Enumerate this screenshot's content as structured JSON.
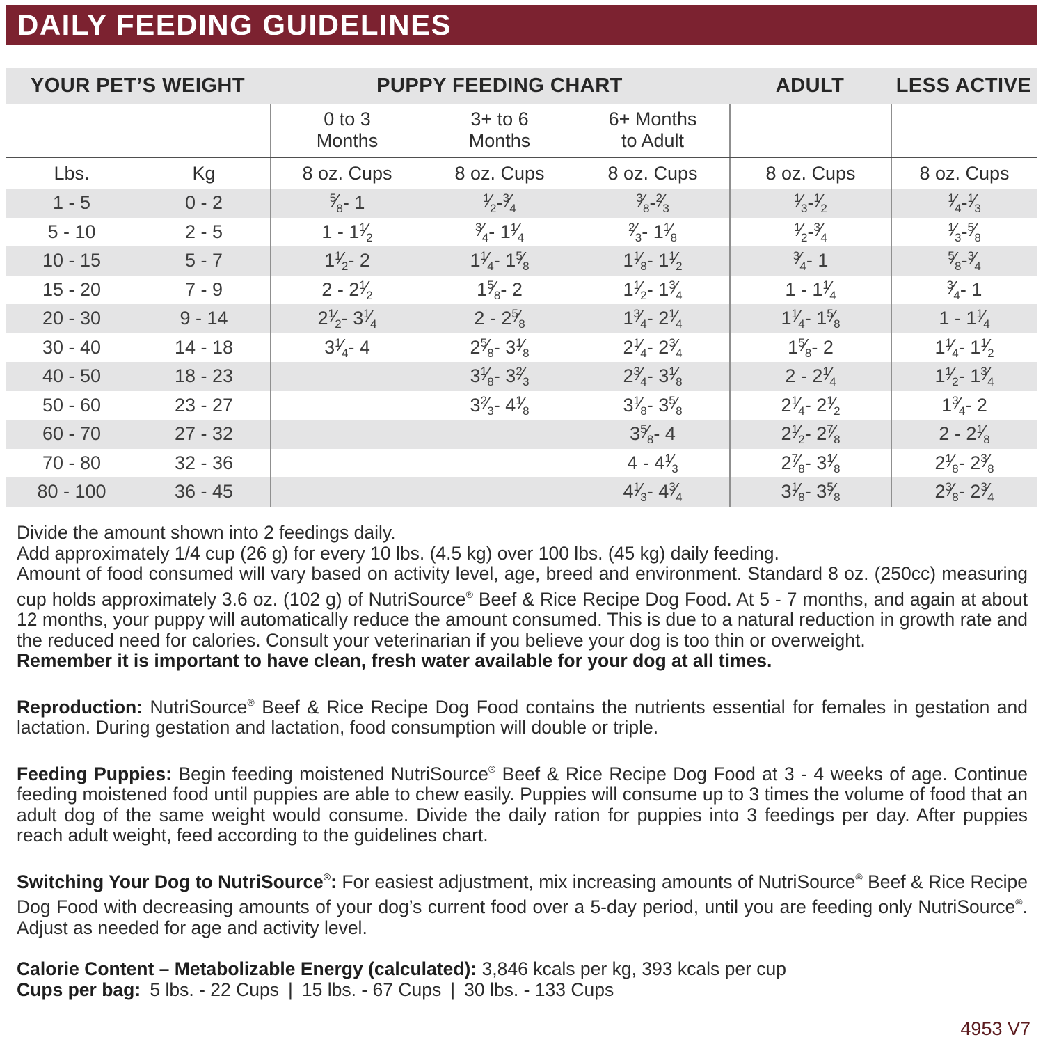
{
  "title": "DAILY FEEDING GUIDELINES",
  "colors": {
    "header_band": "#7c2230",
    "row_stripe": "#e4e4e5",
    "footer_text": "#5c1b1e"
  },
  "table": {
    "group_headers": [
      {
        "label": "YOUR PET’S WEIGHT"
      },
      {
        "label": "PUPPY FEEDING CHART"
      },
      {
        "label": "ADULT"
      },
      {
        "label": "LESS ACTIVE"
      }
    ],
    "month_headers": [
      [
        "0 to 3",
        "Months"
      ],
      [
        "3+ to 6",
        "Months"
      ],
      [
        "6+ Months",
        "to Adult"
      ]
    ],
    "unit_headers": [
      "Lbs.",
      "Kg",
      "8 oz. Cups",
      "8 oz. Cups",
      "8 oz. Cups",
      "8 oz. Cups",
      "8 oz. Cups"
    ],
    "rows": [
      [
        "1 - 5",
        "0 - 2",
        "5/8 - 1",
        "1/2 - 3/4",
        "3/8 - 2/3",
        "1/3 - 1/2",
        "1/4 - 1/3"
      ],
      [
        "5 - 10",
        "2 - 5",
        "1 - 1 1/2",
        "3/4 - 1 1/4",
        "2/3 - 1 1/8",
        "1/2 - 3/4",
        "1/3 - 5/8"
      ],
      [
        "10 - 15",
        "5 - 7",
        "1 1/2 - 2",
        "1 1/4 - 1 5/8",
        "1 1/8 - 1 1/2",
        "3/4 - 1",
        "5/8 - 3/4"
      ],
      [
        "15 - 20",
        "7 - 9",
        "2 - 2 1/2",
        "1 5/8 - 2",
        "1 1/2 - 1 3/4",
        "1 - 1 1/4",
        "3/4 - 1"
      ],
      [
        "20 - 30",
        "9 - 14",
        "2 1/2 - 3 1/4",
        "2 - 2 5/8",
        "1 3/4 - 2 1/4",
        "1 1/4 - 1 5/8",
        "1 - 1 1/4"
      ],
      [
        "30 - 40",
        "14 - 18",
        "3 1/4 - 4",
        "2 5/8 - 3 1/8",
        "2 1/4 - 2 3/4",
        "1 5/8 - 2",
        "1 1/4 - 1 1/2"
      ],
      [
        "40 - 50",
        "18 - 23",
        "",
        "3 1/8 - 3 2/3",
        "2 3/4 - 3 1/8",
        "2 - 2 1/4",
        "1 1/2 - 1 3/4"
      ],
      [
        "50 - 60",
        "23 - 27",
        "",
        "3 2/3 - 4 1/8",
        "3 1/8 - 3 5/8",
        "2 1/4 - 2 1/2",
        "1 3/4 - 2"
      ],
      [
        "60 - 70",
        "27 - 32",
        "",
        "",
        "3 5/8 - 4",
        "2 1/2 - 2 7/8",
        "2 - 2 1/8"
      ],
      [
        "70 - 80",
        "32 - 36",
        "",
        "",
        "4 - 4 1/3",
        "2 7/8 - 3 1/8",
        "2 1/8 - 2 3/8"
      ],
      [
        "80 - 100",
        "36 - 45",
        "",
        "",
        "4 1/3 - 4 3/4",
        "3 1/8 - 3 5/8",
        "2 3/8 - 2 3/4"
      ]
    ]
  },
  "intro": [
    {
      "style": "normal",
      "text": "Divide the amount shown into 2 feedings daily."
    },
    {
      "style": "normal",
      "text": "Add approximately 1/4 cup (26 g) for every 10 lbs. (4.5 kg) over 100 lbs. (45 kg) daily feeding."
    },
    {
      "style": "justify",
      "text": "Amount of food consumed will vary based on activity level, age, breed and environment. Standard 8 oz. (250cc) measuring cup holds approximately 3.6 oz. (102 g)  of NutriSource® Beef & Rice Recipe Dog Food. At 5 - 7 months, and again at about 12 months, your puppy will automatically reduce the amount consumed. This is due to a natural reduction in growth rate and the reduced need for calories. Consult your veterinarian if you believe your dog is too thin or overweight."
    },
    {
      "style": "bold",
      "text": "Remember it is important to have clean, fresh water available for your dog at all times."
    }
  ],
  "sections": [
    {
      "lead": "Reproduction:",
      "justify": true,
      "text": "NutriSource® Beef & Rice Recipe Dog Food contains the nutrients essential for females in gestation and lactation. During gestation and lactation, food consumption will double or triple."
    },
    {
      "lead": "Feeding Puppies:",
      "justify": true,
      "text": "Begin feeding moistened NutriSource® Beef & Rice Recipe Dog Food at 3 - 4 weeks of age. Continue feeding moistened food until puppies are able to chew easily. Puppies will consume up to 3 times the volume of food that an adult dog of the same weight would consume. Divide the daily ration for puppies into 3 feedings per day. After puppies reach adult weight, feed according to the guidelines chart."
    },
    {
      "lead": "Switching Your Dog to NutriSource®:",
      "justify": true,
      "text": "For easiest adjustment, mix increasing amounts of NutriSource® Beef & Rice Recipe Dog Food with decreasing amounts of your dog’s current food over a 5-day period, until you are feeding only NutriSource®. Adjust as needed for age and activity level."
    }
  ],
  "calorie_line": {
    "lead": "Calorie Content – Metabolizable Energy (calculated):",
    "text": "3,846 kcals per kg, 393 kcals per cup"
  },
  "cups_line": {
    "lead": "Cups per bag:",
    "items": [
      "5 lbs. - 22 Cups",
      "15 lbs. - 67 Cups",
      "30 lbs. -  133 Cups"
    ]
  },
  "footer_code": "4953 V7"
}
